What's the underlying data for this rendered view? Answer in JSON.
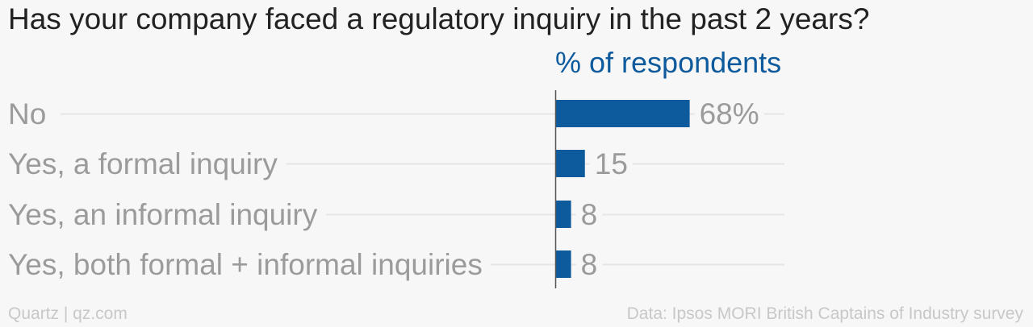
{
  "title": "Has your company faced a regulatory inquiry in the past 2 years?",
  "column_header": "% of respondents",
  "footer": {
    "credit": "Quartz | qz.com",
    "source": "Data: Ipsos MORI British Captains of Industry survey"
  },
  "colors": {
    "bar": "#0d5a9c",
    "label": "#9b9b9b",
    "gridline": "#e6e6e6",
    "axis": "#555555"
  },
  "chart_data": {
    "type": "bar",
    "orientation": "horizontal",
    "title": "Has your company faced a regulatory inquiry in the past 2 years?",
    "xlabel": "% of respondents",
    "ylabel": "",
    "categories": [
      "No",
      "Yes, a formal inquiry",
      "Yes, an informal inquiry",
      "Yes, both formal + informal inquiries"
    ],
    "values": [
      68,
      15,
      8,
      8
    ],
    "value_labels": [
      "68%",
      "15",
      "8",
      "8"
    ],
    "xlim": [
      0,
      100
    ],
    "grid": true,
    "legend": "none"
  }
}
